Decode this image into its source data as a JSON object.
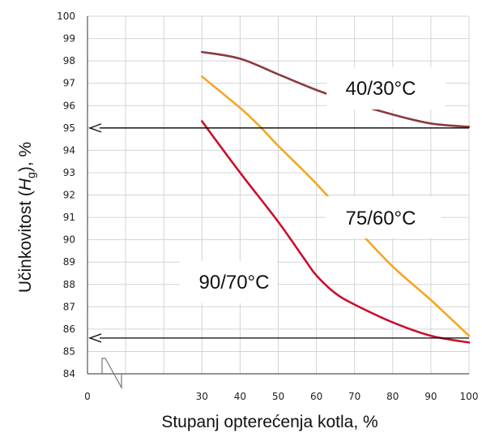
{
  "chart_data": {
    "type": "line",
    "xlabel": "Stupanj opterećenja kotla, %",
    "ylabel_prefix": "Učinkovitost (",
    "ylabel_var": "H",
    "ylabel_sub": "g",
    "ylabel_suffix": "), %",
    "xlim": [
      0,
      100
    ],
    "ylim": [
      84,
      100
    ],
    "x_ticks": [
      0,
      10,
      20,
      30,
      40,
      50,
      60,
      70,
      80,
      90,
      100
    ],
    "x_tick_labels": [
      "0",
      "30",
      "40",
      "50",
      "60",
      "70",
      "80",
      "90",
      "100"
    ],
    "y_ticks": [
      84,
      85,
      86,
      87,
      88,
      89,
      90,
      91,
      92,
      93,
      94,
      95,
      96,
      97,
      98,
      99,
      100
    ],
    "grid": true,
    "series": [
      {
        "name": "40/30°C",
        "color": "#8b3a3a",
        "x": [
          30,
          40,
          50,
          60,
          70,
          80,
          90,
          100
        ],
        "y": [
          98.4,
          98.1,
          97.4,
          96.7,
          96.1,
          95.6,
          95.2,
          95.05
        ]
      },
      {
        "name": "75/60°C",
        "color": "#f5a623",
        "x": [
          30,
          40,
          45,
          50,
          60,
          70,
          80,
          90,
          100
        ],
        "y": [
          97.3,
          95.9,
          95.1,
          94.2,
          92.5,
          90.6,
          88.8,
          87.3,
          85.7
        ]
      },
      {
        "name": "90/70°C",
        "color": "#c8102e",
        "x": [
          30,
          40,
          50,
          57,
          60,
          65,
          70,
          80,
          90,
          100
        ],
        "y": [
          95.3,
          93.0,
          90.8,
          89.1,
          88.4,
          87.6,
          87.1,
          86.3,
          85.7,
          85.4
        ]
      }
    ],
    "reference_arrows": [
      95,
      85.6
    ]
  }
}
